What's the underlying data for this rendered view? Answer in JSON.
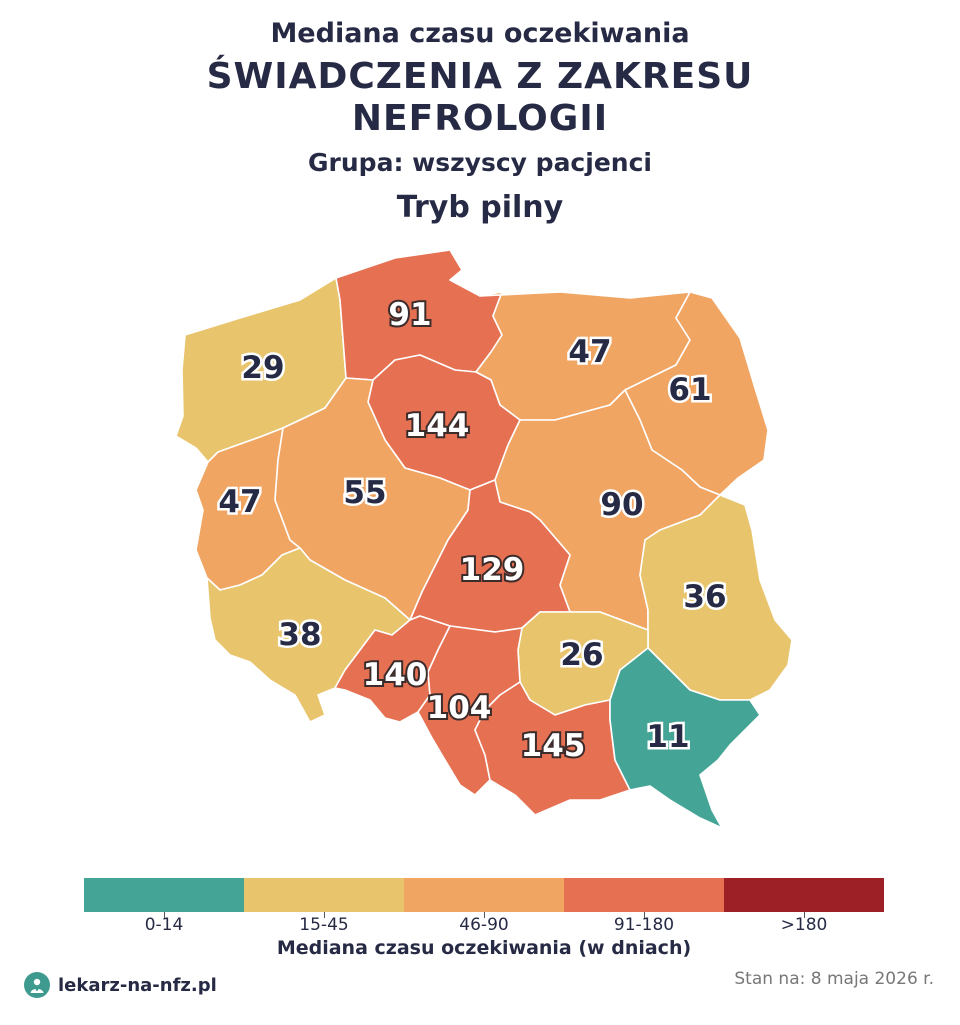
{
  "title": {
    "line1": "Mediana czasu oczekiwania",
    "line2": "ŚWIADCZENIA Z ZAKRESU",
    "line3": "NEFROLOGII",
    "group": "Grupa: wszyscy pacjenci",
    "mode": "Tryb pilny"
  },
  "chart_data": {
    "type": "choropleth",
    "unit": "dni",
    "regions": [
      {
        "key": "zachodniopomorskie",
        "value": 29
      },
      {
        "key": "pomorskie",
        "value": 91
      },
      {
        "key": "warminsko-mazurskie",
        "value": 47
      },
      {
        "key": "podlaskie",
        "value": 61
      },
      {
        "key": "kujawsko-pomorskie",
        "value": 144
      },
      {
        "key": "lubuskie",
        "value": 47
      },
      {
        "key": "wielkopolskie",
        "value": 55
      },
      {
        "key": "mazowieckie",
        "value": 90
      },
      {
        "key": "lodzkie",
        "value": 129
      },
      {
        "key": "lubelskie",
        "value": 36
      },
      {
        "key": "dolnoslaskie",
        "value": 38
      },
      {
        "key": "swietokrzyskie",
        "value": 26
      },
      {
        "key": "opolskie",
        "value": 140
      },
      {
        "key": "slaskie",
        "value": 104
      },
      {
        "key": "malopolskie",
        "value": 145
      },
      {
        "key": "podkarpackie",
        "value": 11
      }
    ],
    "legend": {
      "title": "Mediana czasu oczekiwania (w dniach)",
      "bins": [
        {
          "label": "0-14",
          "min": 0,
          "max": 14,
          "color": "#44a597"
        },
        {
          "label": "15-45",
          "min": 15,
          "max": 45,
          "color": "#e8c46c"
        },
        {
          "label": "46-90",
          "min": 46,
          "max": 90,
          "color": "#f0a563"
        },
        {
          "label": "91-180",
          "min": 91,
          "max": 180,
          "color": "#e67052"
        },
        {
          "label": ">180",
          "min": 181,
          "max": null,
          "color": "#9d2027"
        }
      ]
    }
  },
  "footer": {
    "brand": "lekarz-na-nfz.pl",
    "logo_icon": "doctor-logo-icon",
    "date": "Stan na: 8 maja 2026 r."
  }
}
